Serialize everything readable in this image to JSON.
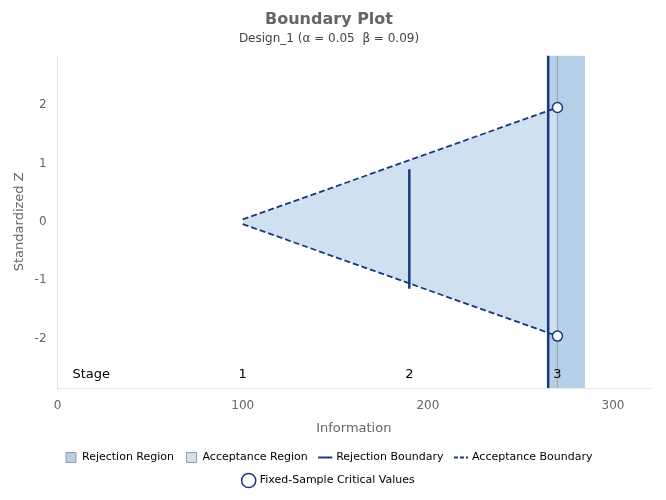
{
  "chart_data": {
    "type": "line",
    "title": "Boundary Plot",
    "subtitle": "Design_1 (α = 0.05  β = 0.09)",
    "xlabel": "Information",
    "ylabel": "Standardized Z",
    "xlim": [
      0,
      320
    ],
    "ylim": [
      -2.85,
      2.85
    ],
    "xticks": [
      0,
      100,
      200,
      300
    ],
    "yticks": [
      -2,
      -1,
      0,
      1,
      2
    ],
    "grid": false,
    "legend": "bottom",
    "series": [
      {
        "name": "Rejection Region",
        "type": "area",
        "color": "#b5cfe8",
        "x": [
          265,
          285
        ],
        "values": [
          2.85,
          2.85
        ],
        "lower": [
          -2.85,
          -2.85
        ]
      },
      {
        "name": "Acceptance Region",
        "type": "area",
        "color": "#cfe0f0",
        "x": [
          100,
          270
        ],
        "values": [
          0.04,
          1.96
        ],
        "lower": [
          -0.04,
          -1.96
        ]
      },
      {
        "name": "Rejection Boundary",
        "type": "line",
        "color": "#1a3880",
        "line_style": "solid",
        "x": [
          265,
          265,
          null,
          190,
          190
        ],
        "values": [
          -2.85,
          2.85,
          null,
          -1.15,
          0.9
        ]
      },
      {
        "name": "Acceptance Boundary",
        "type": "line",
        "color": "#1a3880",
        "line_style": "dashed",
        "x": [
          100,
          270,
          null,
          100,
          270
        ],
        "values": [
          0.04,
          1.96,
          null,
          -0.04,
          -1.96
        ]
      },
      {
        "name": "Fixed-Sample Critical Values",
        "type": "scatter",
        "color": "#1a3880",
        "marker": "circle",
        "x": [
          270,
          270
        ],
        "values": [
          1.96,
          -1.96
        ]
      }
    ],
    "reference_line": {
      "x": 270,
      "color": "#9aabb8"
    },
    "stage_title": {
      "text": "Stage",
      "x": 8,
      "y": -2.62
    },
    "stage_labels": {
      "labels": [
        "1",
        "2",
        "3"
      ],
      "x": [
        100,
        190,
        270
      ],
      "y": -2.62
    }
  }
}
